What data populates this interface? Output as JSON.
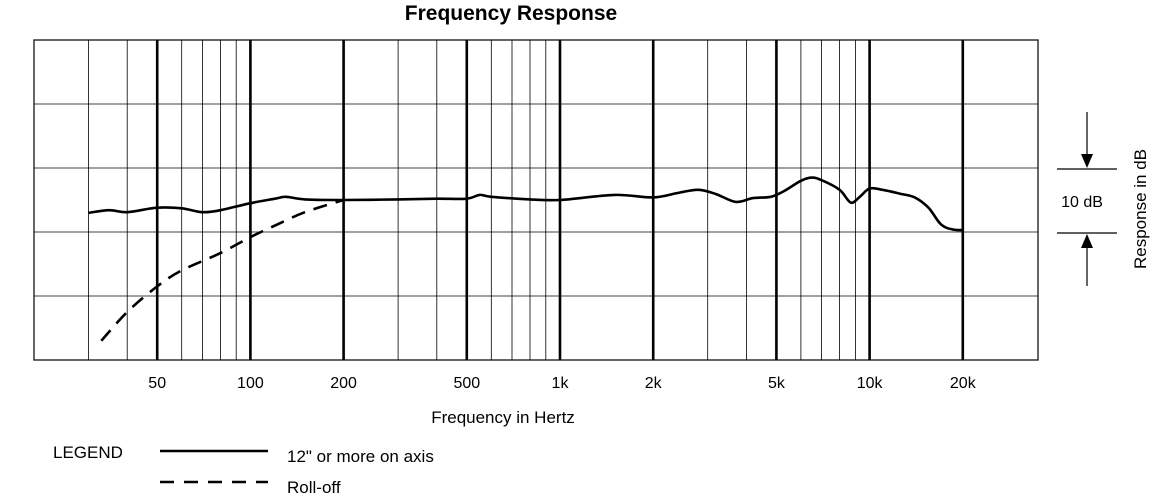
{
  "chart_data": {
    "type": "line",
    "title": "Frequency Response",
    "xlabel": "Frequency in Hertz",
    "ylabel": "Response in dB",
    "xscale": "log",
    "xlim": [
      20,
      35000
    ],
    "ylim": [
      -25,
      25
    ],
    "ytick_step_db": 10,
    "grid": true,
    "major_gridlines_hz": [
      50,
      100,
      200,
      500,
      1000,
      2000,
      5000,
      10000,
      20000
    ],
    "minor_gridlines_hz": [
      30,
      40,
      60,
      70,
      80,
      90,
      300,
      400,
      600,
      700,
      800,
      900,
      3000,
      4000,
      6000,
      7000,
      8000,
      9000
    ],
    "x_tick_labels": [
      {
        "hz": 50,
        "label": "50"
      },
      {
        "hz": 100,
        "label": "100"
      },
      {
        "hz": 200,
        "label": "200"
      },
      {
        "hz": 500,
        "label": "500"
      },
      {
        "hz": 1000,
        "label": "1k"
      },
      {
        "hz": 2000,
        "label": "2k"
      },
      {
        "hz": 5000,
        "label": "5k"
      },
      {
        "hz": 10000,
        "label": "10k"
      },
      {
        "hz": 20000,
        "label": "20k"
      }
    ],
    "scale_marker": {
      "label": "10 dB",
      "from_db": 0,
      "to_db": -10
    },
    "legend": {
      "title": "LEGEND",
      "placement": "bottom-left",
      "entries": [
        {
          "label": "12\" or more on axis",
          "style": "solid"
        },
        {
          "label": "Roll-off",
          "style": "dashed"
        }
      ]
    },
    "series": [
      {
        "name": "12\" or more on axis",
        "style": "solid",
        "points": [
          [
            30,
            -2
          ],
          [
            35,
            -1.6
          ],
          [
            40,
            -1.9
          ],
          [
            50,
            -1.2
          ],
          [
            60,
            -1.3
          ],
          [
            70,
            -1.9
          ],
          [
            80,
            -1.6
          ],
          [
            100,
            -0.5
          ],
          [
            120,
            0.2
          ],
          [
            130,
            0.5
          ],
          [
            150,
            0.1
          ],
          [
            200,
            0
          ],
          [
            300,
            0.1
          ],
          [
            400,
            0.2
          ],
          [
            500,
            0.2
          ],
          [
            550,
            0.8
          ],
          [
            600,
            0.5
          ],
          [
            800,
            0.1
          ],
          [
            1000,
            0
          ],
          [
            1500,
            0.8
          ],
          [
            2000,
            0.4
          ],
          [
            2400,
            1.1
          ],
          [
            2800,
            1.6
          ],
          [
            3200,
            0.9
          ],
          [
            3700,
            -0.3
          ],
          [
            4200,
            0.3
          ],
          [
            4800,
            0.5
          ],
          [
            5300,
            1.4
          ],
          [
            6000,
            3
          ],
          [
            6500,
            3.5
          ],
          [
            7000,
            3.1
          ],
          [
            8000,
            1.6
          ],
          [
            8700,
            -0.4
          ],
          [
            9300,
            0.5
          ],
          [
            10000,
            1.8
          ],
          [
            11000,
            1.6
          ],
          [
            12500,
            1
          ],
          [
            14000,
            0.4
          ],
          [
            15500,
            -1.2
          ],
          [
            17000,
            -3.8
          ],
          [
            18500,
            -4.6
          ],
          [
            20000,
            -4.7
          ]
        ]
      },
      {
        "name": "Roll-off",
        "style": "dashed",
        "points": [
          [
            33,
            -22
          ],
          [
            40,
            -17.5
          ],
          [
            50,
            -13.5
          ],
          [
            60,
            -11
          ],
          [
            80,
            -8.3
          ],
          [
            100,
            -5.8
          ],
          [
            120,
            -4
          ],
          [
            150,
            -1.9
          ],
          [
            200,
            0
          ]
        ]
      }
    ]
  }
}
